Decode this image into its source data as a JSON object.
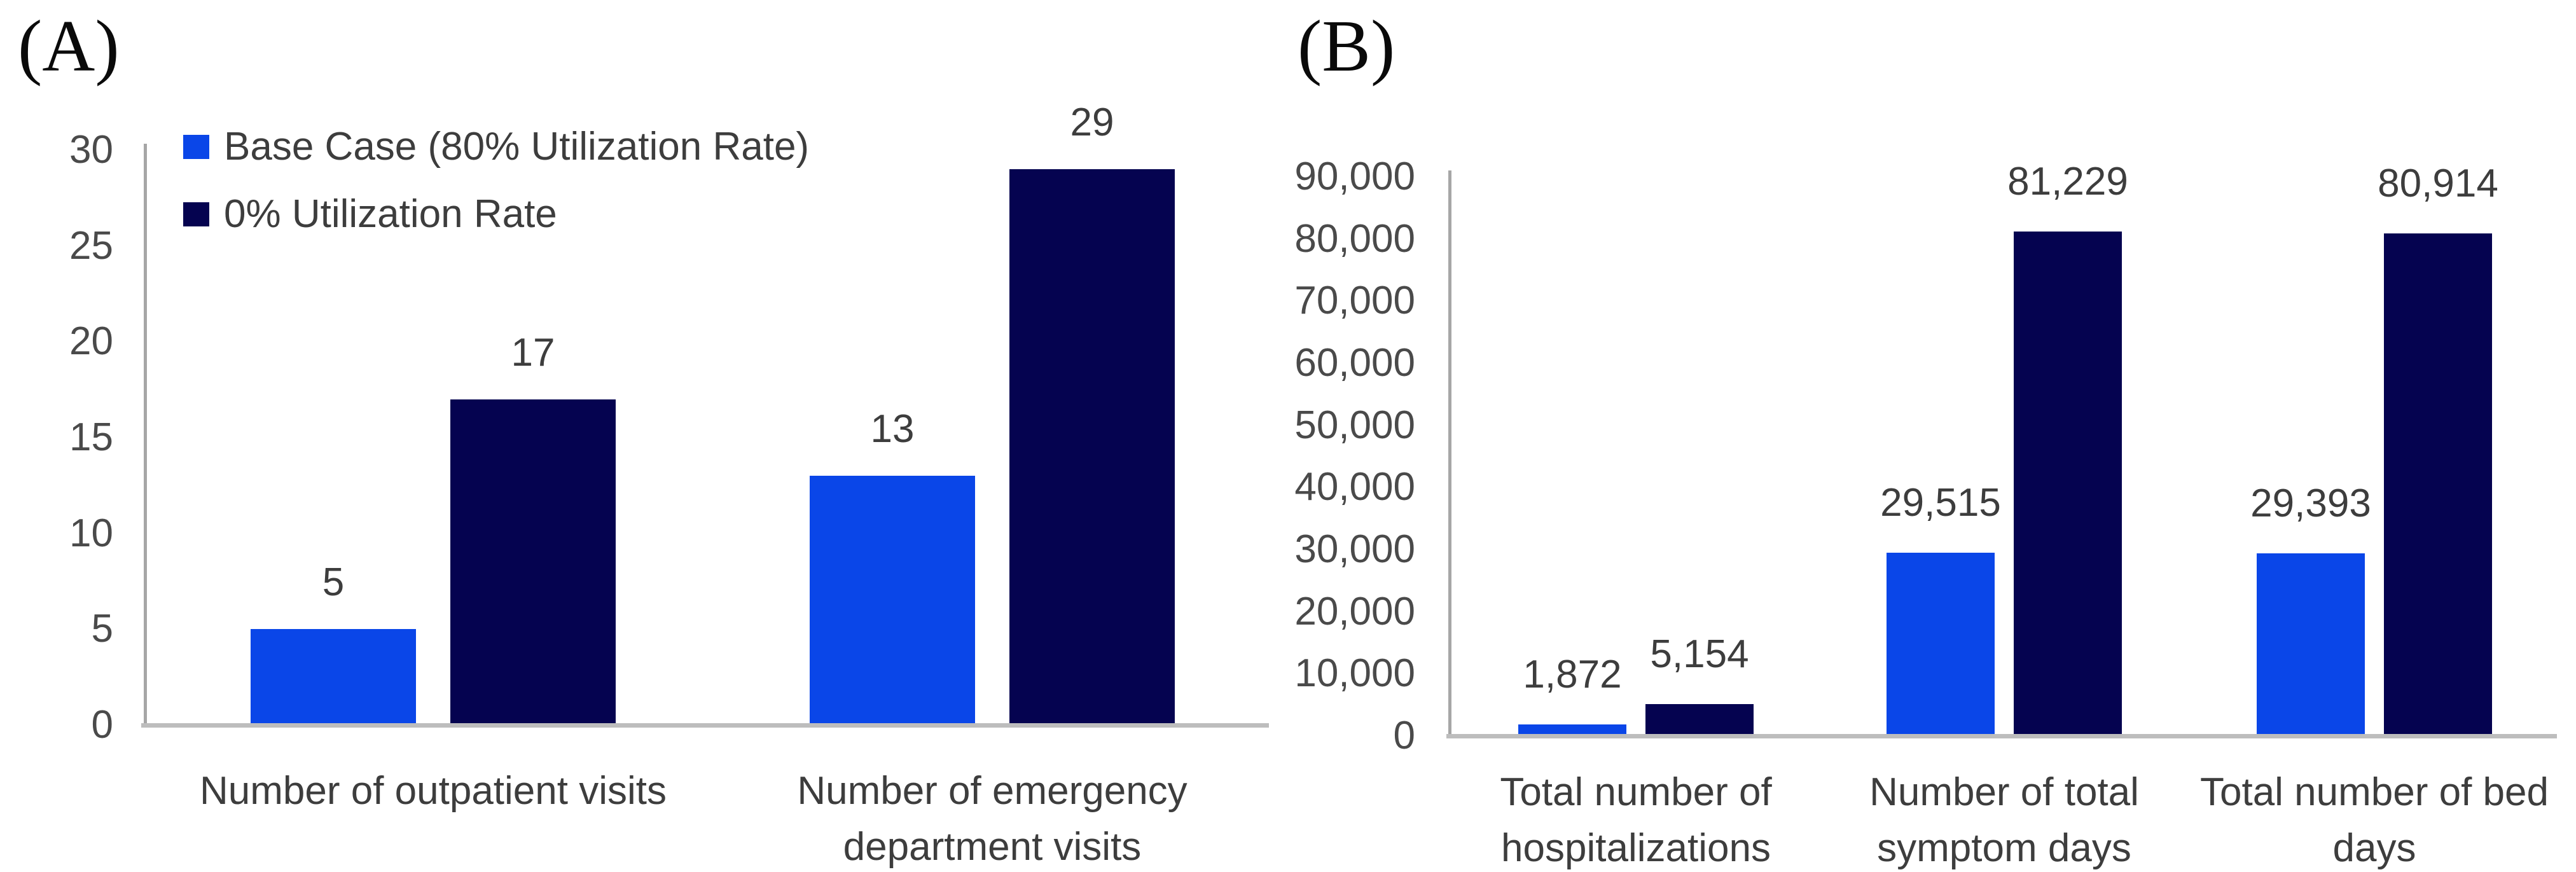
{
  "figure": {
    "panel_a_label": "(A)",
    "panel_b_label": "(B)"
  },
  "colors": {
    "base_case_blue": "#0a46e8",
    "zero_utilization_navy": "#050350",
    "y_axis_grey": "#a6a6a6",
    "baseline_grey": "#bdbdbd",
    "text_grey": "#3d3d3d"
  },
  "legend": {
    "items": [
      {
        "label": "Base Case (80% Utilization Rate)",
        "color": "#0a46e8"
      },
      {
        "label": "0% Utilization Rate",
        "color": "#050350"
      }
    ]
  },
  "chart_data": [
    {
      "type": "bar",
      "panel": "A",
      "panel_label": "(A)",
      "title": "",
      "xlabel": "",
      "ylabel": "",
      "grid": false,
      "legend_position": "top-left-inside",
      "categories": [
        "Number of outpatient visits",
        "Number of emergency department visits"
      ],
      "category_lines": [
        [
          "Number of outpatient visits"
        ],
        [
          "Number of emergency",
          "department visits"
        ]
      ],
      "series": [
        {
          "name": "Base Case (80% Utilization Rate)",
          "color": "#0a46e8",
          "values": [
            5,
            13
          ],
          "labels": [
            "5",
            "13"
          ]
        },
        {
          "name": "0% Utilization Rate",
          "color": "#050350",
          "values": [
            17,
            29
          ],
          "labels": [
            "17",
            "29"
          ]
        }
      ],
      "ylim": [
        0,
        30
      ],
      "yticks": [
        {
          "value": 30,
          "label": "30"
        },
        {
          "value": 25,
          "label": "25"
        },
        {
          "value": 20,
          "label": "20"
        },
        {
          "value": 15,
          "label": "15"
        },
        {
          "value": 10,
          "label": "10"
        },
        {
          "value": 5,
          "label": "5"
        },
        {
          "value": 0,
          "label": "0"
        }
      ]
    },
    {
      "type": "bar",
      "panel": "B",
      "panel_label": "(B)",
      "title": "",
      "xlabel": "",
      "ylabel": "",
      "grid": false,
      "legend_position": "none",
      "categories": [
        "Total number of hospitalizations",
        "Number of total symptom days",
        "Total number of bed days"
      ],
      "category_lines": [
        [
          "Total number of",
          "hospitalizations"
        ],
        [
          "Number of total",
          "symptom days"
        ],
        [
          "Total number of bed",
          "days"
        ]
      ],
      "series": [
        {
          "name": "Base Case (80% Utilization Rate)",
          "color": "#0a46e8",
          "values": [
            1872,
            29515,
            29393
          ],
          "labels": [
            "1,872",
            "29,515",
            "29,393"
          ]
        },
        {
          "name": "0% Utilization Rate",
          "color": "#050350",
          "values": [
            5154,
            81229,
            80914
          ],
          "labels": [
            "5,154",
            "81,229",
            "80,914"
          ]
        }
      ],
      "ylim": [
        0,
        90000
      ],
      "yticks": [
        {
          "value": 90000,
          "label": "90,000"
        },
        {
          "value": 80000,
          "label": "80,000"
        },
        {
          "value": 70000,
          "label": "70,000"
        },
        {
          "value": 60000,
          "label": "60,000"
        },
        {
          "value": 50000,
          "label": "50,000"
        },
        {
          "value": 40000,
          "label": "40,000"
        },
        {
          "value": 30000,
          "label": "30,000"
        },
        {
          "value": 20000,
          "label": "20,000"
        },
        {
          "value": 10000,
          "label": "10,000"
        },
        {
          "value": 0,
          "label": "0"
        }
      ]
    }
  ]
}
